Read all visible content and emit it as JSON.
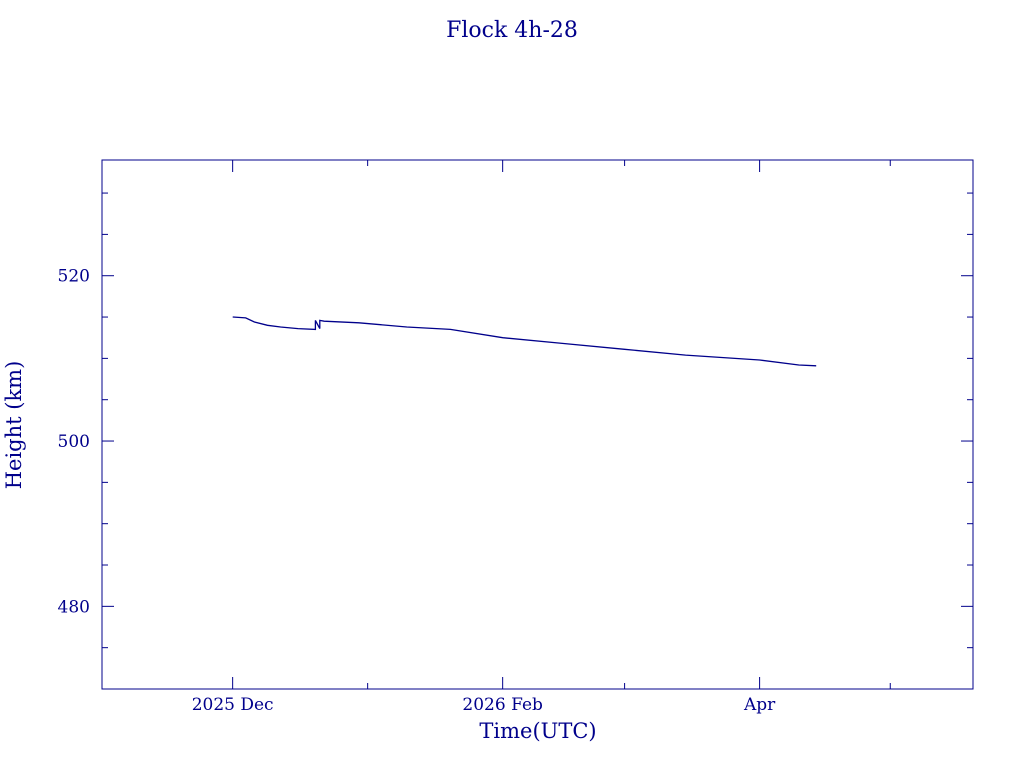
{
  "chart_data": {
    "type": "line",
    "title": "Flock 4h-28",
    "xlabel": "Time(UTC)",
    "ylabel": "Height (km)",
    "x_ticks": [
      {
        "date": "2025-12-01",
        "label": "2025 Dec"
      },
      {
        "date": "2026-02-01",
        "label": "2026 Feb"
      },
      {
        "date": "2026-04-01",
        "label": "Apr"
      }
    ],
    "x_minor_ticks": [
      "2026-01-01",
      "2026-03-01",
      "2026-05-01"
    ],
    "xlim": [
      "2025-11-01",
      "2026-05-20"
    ],
    "ylim": [
      470,
      534
    ],
    "y_ticks": [
      480,
      500,
      520
    ],
    "y_minor_step": 5,
    "grid": false,
    "colors": {
      "axes": "#00008b",
      "series": "#00008b"
    },
    "series": [
      {
        "x": [
          "2025-12-01",
          "2025-12-04",
          "2025-12-06",
          "2025-12-09",
          "2025-12-12",
          "2025-12-16",
          "2025-12-20",
          "2025-12-20",
          "2025-12-21",
          "2025-12-21",
          "2025-12-22",
          "2025-12-30",
          "2026-01-10",
          "2026-01-20",
          "2026-02-01",
          "2026-02-15",
          "2026-03-01",
          "2026-03-15",
          "2026-04-01",
          "2026-04-10",
          "2026-04-14"
        ],
        "y": [
          515.0,
          514.9,
          514.4,
          514.0,
          513.8,
          513.6,
          513.5,
          514.6,
          513.6,
          514.6,
          514.5,
          514.3,
          513.8,
          513.5,
          512.5,
          511.8,
          511.1,
          510.4,
          509.8,
          509.2,
          509.1
        ]
      }
    ]
  }
}
